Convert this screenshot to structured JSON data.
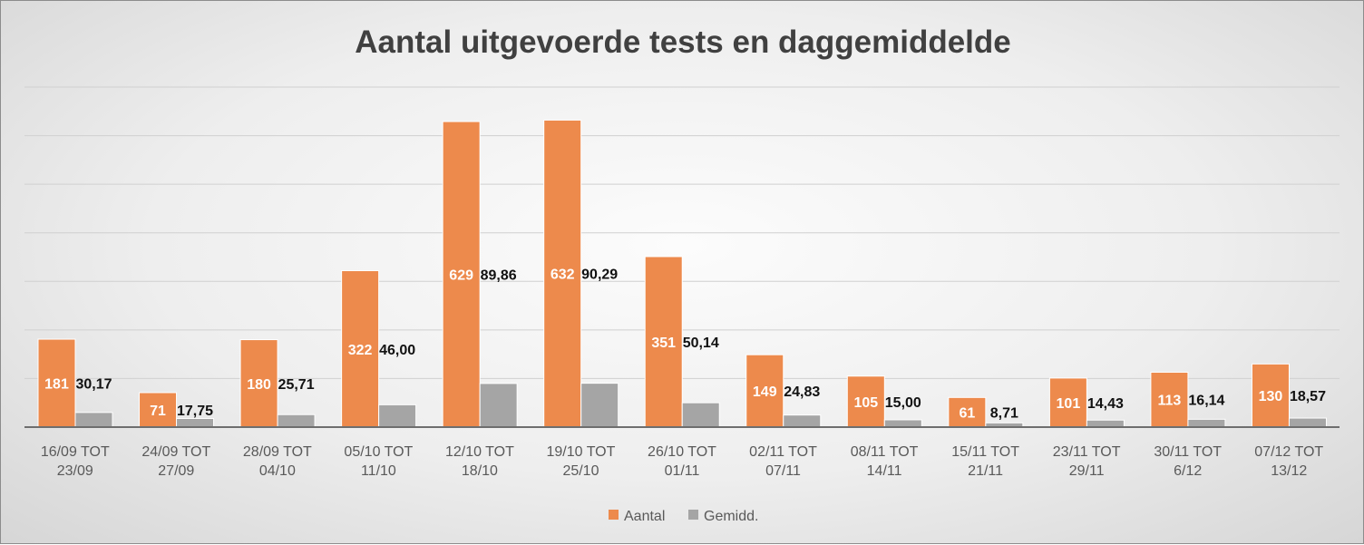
{
  "chart_data": {
    "type": "bar",
    "title": "Aantal uitgevoerde tests en daggemiddelde",
    "categories": [
      [
        "16/09 TOT",
        "23/09"
      ],
      [
        "24/09 TOT",
        "27/09"
      ],
      [
        "28/09 TOT",
        "04/10"
      ],
      [
        "05/10 TOT",
        "11/10"
      ],
      [
        "12/10 TOT",
        "18/10"
      ],
      [
        "19/10 TOT",
        "25/10"
      ],
      [
        "26/10 TOT",
        "01/11"
      ],
      [
        "02/11 TOT",
        "07/11"
      ],
      [
        "08/11 TOT",
        "14/11"
      ],
      [
        "15/11 TOT",
        "21/11"
      ],
      [
        "23/11 TOT",
        "29/11"
      ],
      [
        "30/11 TOT",
        "6/12"
      ],
      [
        "07/12 TOT",
        "13/12"
      ]
    ],
    "series": [
      {
        "name": "Aantal",
        "color": "#ed8a4c",
        "values": [
          181,
          71,
          180,
          322,
          629,
          632,
          351,
          149,
          105,
          61,
          101,
          113,
          130
        ],
        "labels": [
          "181",
          "71",
          "180",
          "322",
          "629",
          "632",
          "351",
          "149",
          "105",
          "61",
          "101",
          "113",
          "130"
        ]
      },
      {
        "name": "Gemidd.",
        "color": "#a5a5a5",
        "values": [
          30.17,
          17.75,
          25.71,
          46.0,
          89.86,
          90.29,
          50.14,
          24.83,
          15.0,
          8.71,
          14.43,
          16.14,
          18.57
        ],
        "labels": [
          "30,17",
          "17,75",
          "25,71",
          "46,00",
          "89,86",
          "90,29",
          "50,14",
          "24,83",
          "15,00",
          "8,71",
          "14,43",
          "16,14",
          "18,57"
        ]
      }
    ],
    "ylim": [
      0,
      700
    ],
    "grid": true,
    "legend_position": "bottom"
  }
}
